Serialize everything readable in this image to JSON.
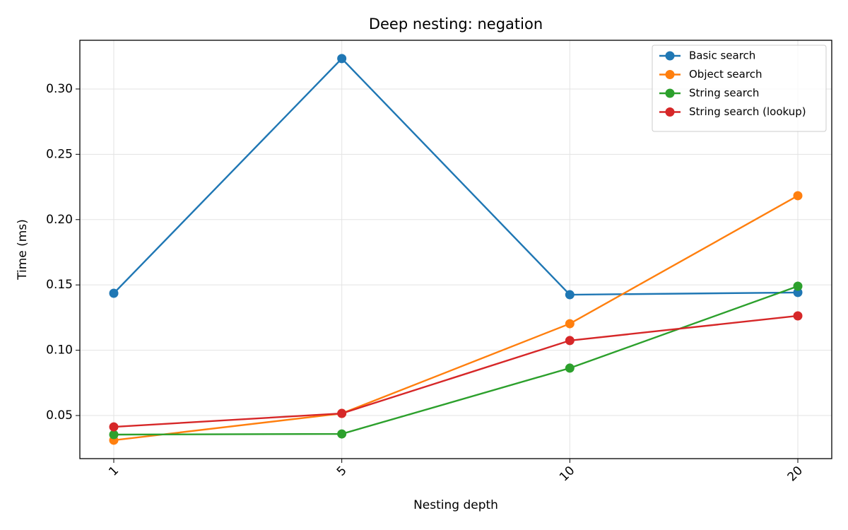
{
  "chart_data": {
    "type": "line",
    "title": "Deep nesting: negation",
    "x_label": "Nesting depth",
    "y_label": "Time (ms)",
    "categories": [
      "1",
      "5",
      "10",
      "20"
    ],
    "series": [
      {
        "name": "Basic search",
        "color": "#1f77b4",
        "values": [
          0.1436,
          0.3233,
          0.1425,
          0.1442
        ]
      },
      {
        "name": "Object search",
        "color": "#ff7f0e",
        "values": [
          0.0311,
          0.0516,
          0.1203,
          0.2183
        ]
      },
      {
        "name": "String search",
        "color": "#2ca02c",
        "values": [
          0.0354,
          0.0359,
          0.0863,
          0.149
        ]
      },
      {
        "name": "String search (lookup)",
        "color": "#d62728",
        "values": [
          0.0413,
          0.0516,
          0.1074,
          0.1263
        ]
      }
    ],
    "ylim": [
      0.017,
      0.3373
    ],
    "yticks": [
      0.05,
      {
        "value": 0.1,
        "label": "0.10"
      },
      0.15,
      {
        "value": 0.2,
        "label": "0.20"
      },
      0.25,
      {
        "value": 0.3,
        "label": "0.30"
      }
    ],
    "grid": true,
    "legend": "upper-right"
  }
}
